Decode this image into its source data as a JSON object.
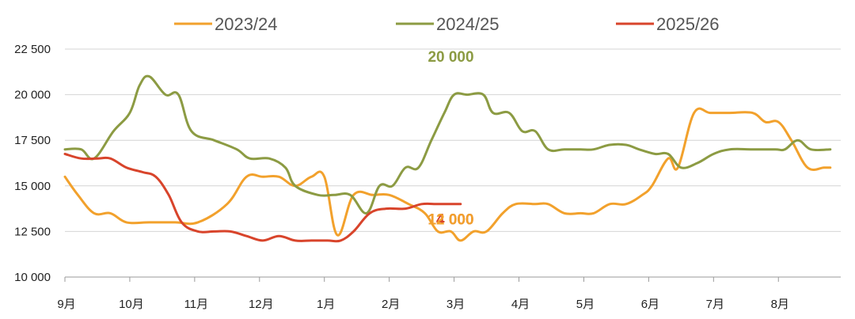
{
  "chart_data": {
    "type": "line",
    "title": "",
    "xlabel": "",
    "ylabel": "",
    "ylim": [
      10000,
      22500
    ],
    "yticks": [
      10000,
      12500,
      15000,
      17500,
      20000,
      22500
    ],
    "ytick_labels": [
      "10 000",
      "12 500",
      "15 000",
      "17 500",
      "20 000",
      "22 500"
    ],
    "xticks": [
      0,
      1,
      2,
      3,
      4,
      5,
      6,
      7,
      8,
      9,
      10,
      11
    ],
    "xtick_labels": [
      "9月",
      "10月",
      "11月",
      "12月",
      "1月",
      "2月",
      "3月",
      "4月",
      "5月",
      "6月",
      "7月",
      "8月"
    ],
    "xlim": [
      0,
      11.9
    ],
    "grid": "horizontal",
    "legend_position": "top",
    "series": [
      {
        "name": "2023/24",
        "color": "#F2A12C",
        "points": [
          [
            0,
            15500
          ],
          [
            0.2,
            14500
          ],
          [
            0.45,
            13500
          ],
          [
            0.7,
            13500
          ],
          [
            0.95,
            13000
          ],
          [
            1.3,
            13000
          ],
          [
            1.7,
            13000
          ],
          [
            2.05,
            13000
          ],
          [
            2.5,
            14000
          ],
          [
            2.8,
            15500
          ],
          [
            3.05,
            15500
          ],
          [
            3.3,
            15500
          ],
          [
            3.55,
            15000
          ],
          [
            3.8,
            15500
          ],
          [
            4.0,
            15500
          ],
          [
            4.2,
            12300
          ],
          [
            4.45,
            14500
          ],
          [
            4.75,
            14500
          ],
          [
            5.0,
            14500
          ],
          [
            5.3,
            14000
          ],
          [
            5.55,
            13500
          ],
          [
            5.75,
            12500
          ],
          [
            5.95,
            12500
          ],
          [
            6.1,
            12000
          ],
          [
            6.3,
            12500
          ],
          [
            6.5,
            12500
          ],
          [
            6.75,
            13500
          ],
          [
            6.95,
            14000
          ],
          [
            7.25,
            14000
          ],
          [
            7.45,
            14000
          ],
          [
            7.7,
            13500
          ],
          [
            7.95,
            13500
          ],
          [
            8.15,
            13500
          ],
          [
            8.4,
            14000
          ],
          [
            8.65,
            14000
          ],
          [
            8.9,
            14500
          ],
          [
            9.05,
            15000
          ],
          [
            9.3,
            16500
          ],
          [
            9.45,
            16000
          ],
          [
            9.7,
            19000
          ],
          [
            9.95,
            19000
          ],
          [
            10.25,
            19000
          ],
          [
            10.6,
            19000
          ],
          [
            10.8,
            18500
          ],
          [
            11.0,
            18500
          ],
          [
            11.2,
            17500
          ],
          [
            11.45,
            16000
          ],
          [
            11.7,
            16000
          ],
          [
            11.8,
            16000
          ]
        ]
      },
      {
        "name": "2024/25",
        "color": "#8C9B43",
        "points": [
          [
            0,
            17000
          ],
          [
            0.25,
            17000
          ],
          [
            0.45,
            16500
          ],
          [
            0.75,
            18000
          ],
          [
            1.0,
            19000
          ],
          [
            1.15,
            20500
          ],
          [
            1.3,
            21000
          ],
          [
            1.55,
            20000
          ],
          [
            1.75,
            20000
          ],
          [
            1.95,
            18000
          ],
          [
            2.3,
            17500
          ],
          [
            2.65,
            17000
          ],
          [
            2.85,
            16500
          ],
          [
            3.15,
            16500
          ],
          [
            3.4,
            16000
          ],
          [
            3.55,
            15000
          ],
          [
            3.9,
            14500
          ],
          [
            4.15,
            14500
          ],
          [
            4.4,
            14500
          ],
          [
            4.65,
            13500
          ],
          [
            4.85,
            15000
          ],
          [
            5.05,
            15000
          ],
          [
            5.25,
            16000
          ],
          [
            5.45,
            16000
          ],
          [
            5.65,
            17500
          ],
          [
            5.85,
            19000
          ],
          [
            6.0,
            20000
          ],
          [
            6.2,
            20000
          ],
          [
            6.45,
            20000
          ],
          [
            6.6,
            19000
          ],
          [
            6.85,
            19000
          ],
          [
            7.05,
            18000
          ],
          [
            7.25,
            18000
          ],
          [
            7.45,
            17000
          ],
          [
            7.7,
            17000
          ],
          [
            7.95,
            17000
          ],
          [
            8.15,
            17000
          ],
          [
            8.4,
            17250
          ],
          [
            8.65,
            17250
          ],
          [
            8.85,
            17000
          ],
          [
            9.1,
            16750
          ],
          [
            9.3,
            16750
          ],
          [
            9.5,
            16000
          ],
          [
            9.75,
            16250
          ],
          [
            10.0,
            16750
          ],
          [
            10.25,
            17000
          ],
          [
            10.6,
            17000
          ],
          [
            10.95,
            17000
          ],
          [
            11.1,
            17000
          ],
          [
            11.3,
            17500
          ],
          [
            11.5,
            17000
          ],
          [
            11.8,
            17000
          ]
        ]
      },
      {
        "name": "2025/26",
        "color": "#D8442B",
        "points": [
          [
            0,
            16750
          ],
          [
            0.25,
            16500
          ],
          [
            0.5,
            16500
          ],
          [
            0.7,
            16500
          ],
          [
            0.95,
            16000
          ],
          [
            1.2,
            15750
          ],
          [
            1.4,
            15500
          ],
          [
            1.6,
            14500
          ],
          [
            1.8,
            13000
          ],
          [
            2.05,
            12500
          ],
          [
            2.3,
            12500
          ],
          [
            2.55,
            12500
          ],
          [
            2.8,
            12250
          ],
          [
            3.05,
            12000
          ],
          [
            3.3,
            12250
          ],
          [
            3.55,
            12000
          ],
          [
            3.8,
            12000
          ],
          [
            4.05,
            12000
          ],
          [
            4.25,
            12000
          ],
          [
            4.45,
            12500
          ],
          [
            4.7,
            13500
          ],
          [
            4.95,
            13750
          ],
          [
            5.25,
            13750
          ],
          [
            5.5,
            14000
          ],
          [
            5.75,
            14000
          ],
          [
            6.0,
            14000
          ],
          [
            6.1,
            14000
          ]
        ]
      }
    ],
    "annotations": [
      {
        "text": "20 000",
        "series": "2024/25",
        "x": 6.0,
        "y": 20000
      },
      {
        "text": "14 000",
        "series": "2025/26",
        "x": 6.0,
        "y": 14000
      },
      {
        "text": "12 000",
        "series": "2023/24",
        "x": 6.0,
        "y": 12000
      }
    ]
  }
}
